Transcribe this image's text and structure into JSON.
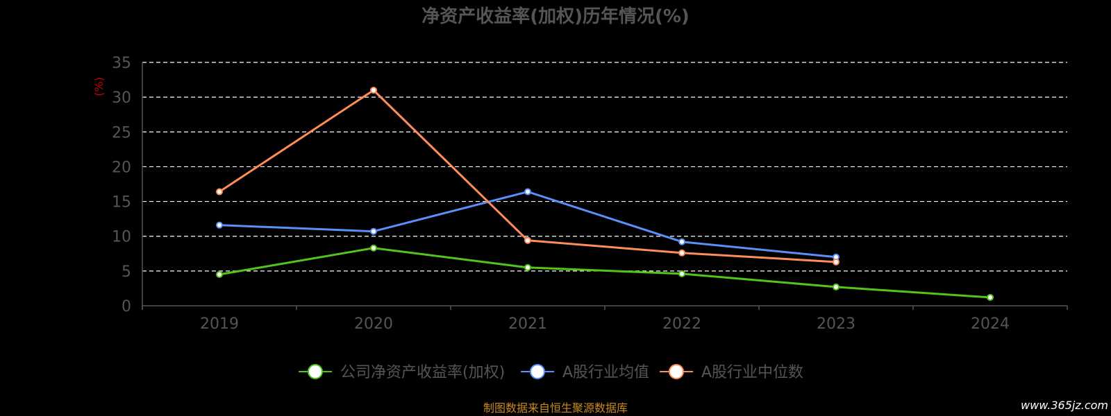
{
  "chart_data": {
    "type": "line",
    "title": "净资产收益率(加权)历年情况(%)",
    "ylabel": "(%)",
    "xlabel": "",
    "categories": [
      "2019",
      "2020",
      "2021",
      "2022",
      "2023",
      "2024"
    ],
    "ylim": [
      0,
      35
    ],
    "yticks": [
      0,
      5,
      10,
      15,
      20,
      25,
      30,
      35
    ],
    "grid": true,
    "legend_position": "bottom-center",
    "series": [
      {
        "name": "公司净资产收益率(加权)",
        "color": "#52c41a",
        "values": [
          4.5,
          8.3,
          5.5,
          4.6,
          2.7,
          1.2
        ]
      },
      {
        "name": "A股行业均值",
        "color": "#5b8ff9",
        "values": [
          11.6,
          10.7,
          16.4,
          9.2,
          7.0,
          null
        ]
      },
      {
        "name": "A股行业中位数",
        "color": "#ff8c5a",
        "values": [
          16.4,
          31.0,
          9.4,
          7.6,
          6.3,
          null
        ]
      }
    ]
  },
  "footer": {
    "source": "制图数据来自恒生聚源数据库",
    "watermark": "www.365jz.com"
  }
}
